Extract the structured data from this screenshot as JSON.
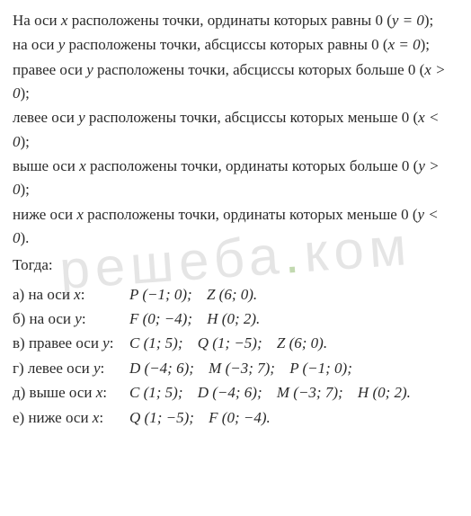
{
  "watermark": {
    "text_before_dot": "решеба",
    "text_after_dot": "ком",
    "color_text": "rgba(180,180,180,0.35)",
    "color_dot": "rgba(120,170,80,0.45)",
    "fontsize": 60
  },
  "intro": {
    "p1a": "На оси ",
    "p1var": "x",
    "p1b": " расположены точки, ординаты которых равны 0 (",
    "p1eq": "y = 0",
    "p1c": ");",
    "p2a": "на оси ",
    "p2var": "y",
    "p2b": " расположены точки, абсциссы которых равны 0 (",
    "p2eq": "x = 0",
    "p2c": ");",
    "p3a": "правее оси ",
    "p3var": "y",
    "p3b": " расположены точки, абсциссы которых больше 0 (",
    "p3eq": "x > 0",
    "p3c": ");",
    "p4a": "левее оси ",
    "p4var": "y",
    "p4b": " расположены точки, абсциссы которых меньше 0 (",
    "p4eq": "x < 0",
    "p4c": ");",
    "p5a": "выше оси ",
    "p5var": "x",
    "p5b": " расположены точки, ординаты которых больше 0 (",
    "p5eq": "y > 0",
    "p5c": ");",
    "p6a": "ниже оси ",
    "p6var": "x",
    "p6b": " расположены точки, ординаты которых меньше 0 (",
    "p6eq": "y < 0",
    "p6c": ")."
  },
  "then": "Тогда:",
  "answers": {
    "a": {
      "label_pre": "а) на оси ",
      "label_var": "x",
      "label_post": ":",
      "p1": "P (−1; 0);",
      "p2": "Z (6; 0)."
    },
    "b": {
      "label_pre": "б) на оси ",
      "label_var": "y",
      "label_post": ":",
      "p1": "F (0; −4);",
      "p2": "H (0; 2)."
    },
    "v": {
      "label_pre": "в) правее оси ",
      "label_var": "y",
      "label_post": ":",
      "p1": "C (1; 5);",
      "p2": "Q (1; −5);",
      "p3": "Z (6; 0)."
    },
    "g": {
      "label_pre": "г) левее оси ",
      "label_var": "y",
      "label_post": ":",
      "p1": "D (−4; 6);",
      "p2": "M (−3; 7);",
      "p3": "P (−1; 0);"
    },
    "d": {
      "label_pre": "д) выше оси ",
      "label_var": "x",
      "label_post": ":",
      "p1": "C (1; 5);",
      "p2": "D (−4; 6);",
      "p3": "M (−3; 7);",
      "p4": "H (0; 2)."
    },
    "e": {
      "label_pre": "е) ниже оси ",
      "label_var": "x",
      "label_post": ":",
      "p1": "Q (1; −5);",
      "p2": "F (0; −4)."
    }
  },
  "style": {
    "body_width": 524,
    "body_height": 574,
    "background_color": "#ffffff",
    "text_color": "#2a2a2a",
    "font_family": "Times New Roman, serif",
    "font_size": 17,
    "line_height": 1.55,
    "answer_label_width": 130
  }
}
